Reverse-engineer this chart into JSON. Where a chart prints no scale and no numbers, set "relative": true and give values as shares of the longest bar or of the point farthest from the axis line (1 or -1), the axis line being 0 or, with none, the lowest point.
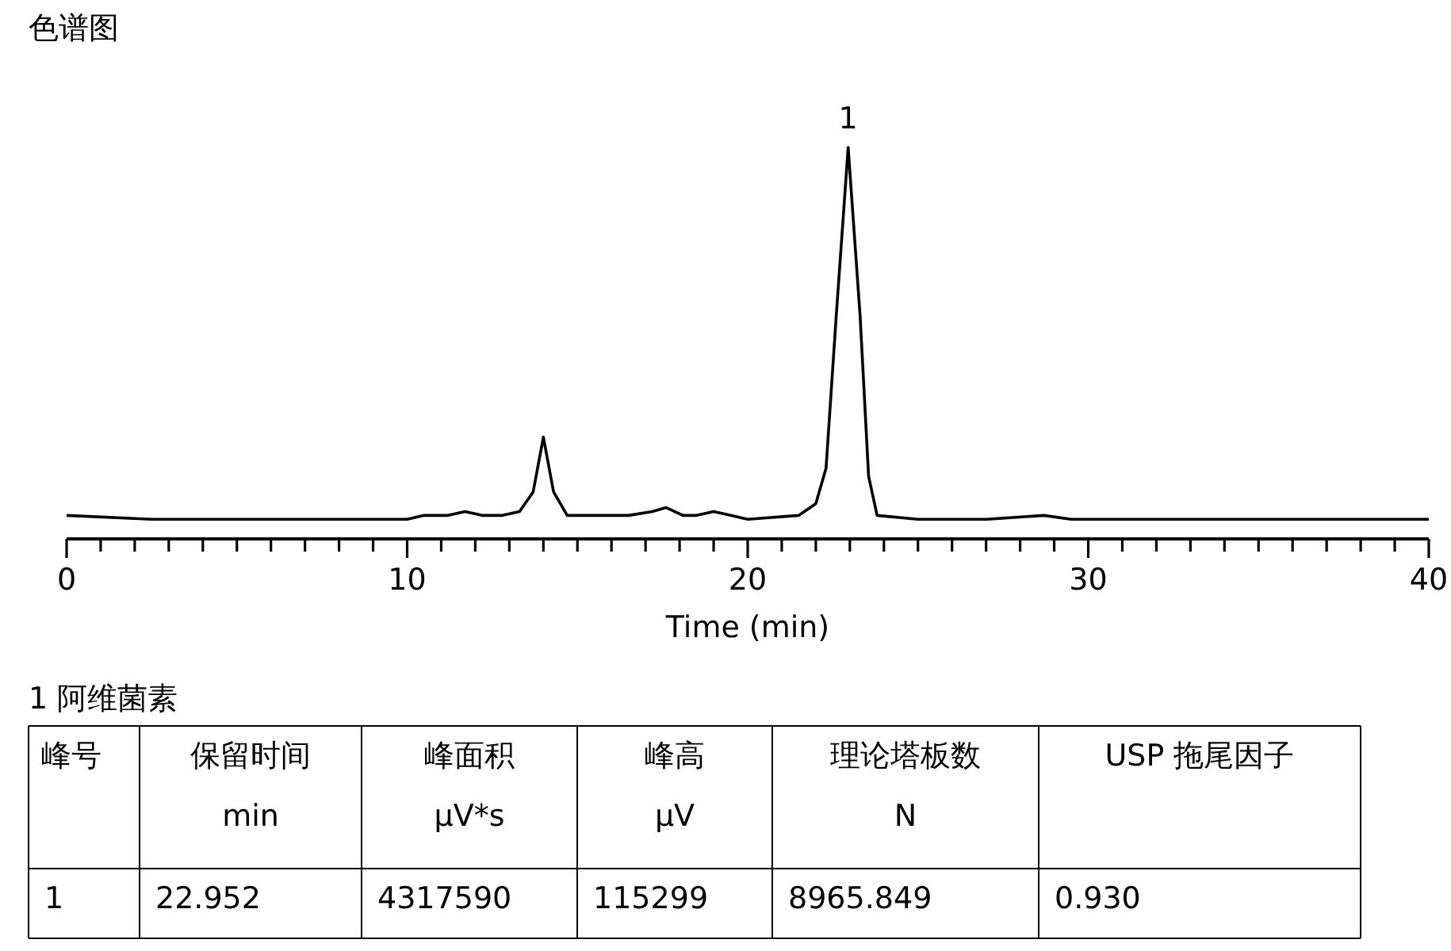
{
  "chart_data": {
    "type": "line",
    "title": "色谱图",
    "xlabel": "Time (min)",
    "relative": true,
    "xlim": [
      0,
      40
    ],
    "xticks": [
      0,
      {
        "value": 1,
        "label": null
      },
      {
        "value": 2,
        "label": null
      },
      {
        "value": 3,
        "label": null
      },
      {
        "value": 4,
        "label": null
      },
      {
        "value": 5,
        "label": null
      },
      {
        "value": 6,
        "label": null
      },
      {
        "value": 7,
        "label": null
      },
      {
        "value": 8,
        "label": null
      },
      {
        "value": 9,
        "label": null
      },
      10,
      {
        "value": 11,
        "label": null
      },
      {
        "value": 12,
        "label": null
      },
      {
        "value": 13,
        "label": null
      },
      {
        "value": 14,
        "label": null
      },
      {
        "value": 15,
        "label": null
      },
      {
        "value": 16,
        "label": null
      },
      {
        "value": 17,
        "label": null
      },
      {
        "value": 18,
        "label": null
      },
      {
        "value": 19,
        "label": null
      },
      20,
      {
        "value": 21,
        "label": null
      },
      {
        "value": 22,
        "label": null
      },
      {
        "value": 23,
        "label": null
      },
      {
        "value": 24,
        "label": null
      },
      {
        "value": 25,
        "label": null
      },
      {
        "value": 26,
        "label": null
      },
      {
        "value": 27,
        "label": null
      },
      {
        "value": 28,
        "label": null
      },
      {
        "value": 29,
        "label": null
      },
      30,
      {
        "value": 31,
        "label": null
      },
      {
        "value": 32,
        "label": null
      },
      {
        "value": 33,
        "label": null
      },
      {
        "value": 34,
        "label": null
      },
      {
        "value": 35,
        "label": null
      },
      {
        "value": 36,
        "label": null
      },
      {
        "value": 37,
        "label": null
      },
      {
        "value": 38,
        "label": null
      },
      {
        "value": 39,
        "label": null
      },
      40
    ],
    "x": [
      0,
      2.5,
      5,
      8,
      10,
      10.5,
      11.2,
      11.7,
      12.2,
      12.8,
      13.3,
      13.7,
      14.0,
      14.3,
      14.7,
      16.5,
      17.2,
      17.6,
      18.1,
      18.5,
      19.0,
      19.5,
      20,
      21.5,
      22.0,
      22.3,
      22.6,
      22.95,
      23.3,
      23.55,
      23.8,
      25,
      27,
      28.7,
      29.5,
      31,
      33,
      40
    ],
    "series": [
      {
        "color": "#000000",
        "values": [
          0.06,
          0.05,
          0.05,
          0.05,
          0.05,
          0.06,
          0.06,
          0.07,
          0.06,
          0.06,
          0.07,
          0.12,
          0.26,
          0.12,
          0.06,
          0.06,
          0.07,
          0.08,
          0.06,
          0.06,
          0.07,
          0.06,
          0.05,
          0.06,
          0.09,
          0.18,
          0.57,
          1,
          0.57,
          0.16,
          0.06,
          0.05,
          0.05,
          0.06,
          0.05,
          0.05,
          0.05,
          0.05
        ]
      }
    ],
    "annotations": [
      {
        "text": "1",
        "x": 22.95,
        "y": 1
      },
      "1 阿维菌素",
      "峰号",
      "保留时间\nmin",
      "峰面积\nμV*s",
      "峰高\nμV",
      "理论塔板数\nN",
      "USP 拖尾因子",
      "1",
      "22.952",
      "4317590",
      "115299",
      "8965.849",
      "0.930"
    ]
  }
}
